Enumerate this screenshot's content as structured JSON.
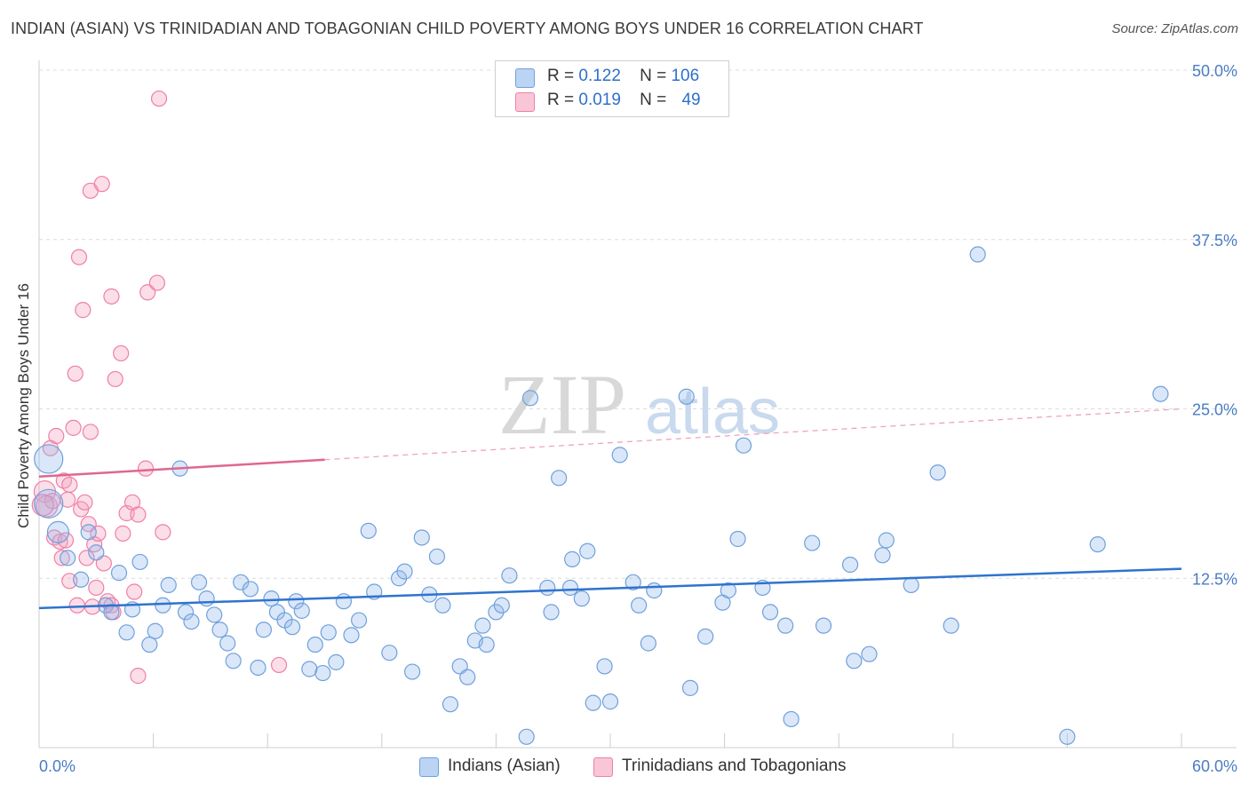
{
  "title": "INDIAN (ASIAN) VS TRINIDADIAN AND TOBAGONIAN CHILD POVERTY AMONG BOYS UNDER 16 CORRELATION CHART",
  "source": "Source: ZipAtlas.com",
  "watermark": {
    "zip": "ZIP",
    "atlas": "atlas"
  },
  "legend": {
    "r_label": "R =",
    "n_label": "N =",
    "series": [
      {
        "r": "0.122",
        "n": "106"
      },
      {
        "r": "0.019",
        "n": "49"
      }
    ]
  },
  "colors": {
    "blue": "#6fa0dc",
    "blue_line": "#2f73cf",
    "pink": "#f07fa6",
    "pink_line": "#e06690"
  },
  "chart_data": {
    "type": "scatter",
    "title": "INDIAN (ASIAN) VS TRINIDADIAN AND TOBAGONIAN CHILD POVERTY AMONG BOYS UNDER 16 CORRELATION CHART",
    "xlabel": "",
    "ylabel": "Child Poverty Among Boys Under 16",
    "xlim": [
      0,
      60
    ],
    "ylim": [
      0,
      50
    ],
    "x_tick_labels": [
      "0.0%",
      "60.0%"
    ],
    "y_ticks": [
      12.5,
      25.0,
      37.5,
      50.0
    ],
    "y_tick_labels": [
      "12.5%",
      "25.0%",
      "37.5%",
      "50.0%"
    ],
    "grid": true,
    "legend_position": "top-center",
    "series": [
      {
        "name": "Indians (Asian)",
        "color": "#6fa0dc",
        "trend": {
          "x": [
            0,
            60
          ],
          "y": [
            10.3,
            13.2
          ],
          "dashed_from": null
        },
        "points": [
          {
            "x": 0.5,
            "y": 21.3,
            "s": 3
          },
          {
            "x": 0.5,
            "y": 18.0,
            "s": 3
          },
          {
            "x": 1.0,
            "y": 15.9,
            "s": 2
          },
          {
            "x": 1.5,
            "y": 14.0
          },
          {
            "x": 2.2,
            "y": 12.4
          },
          {
            "x": 2.6,
            "y": 15.9
          },
          {
            "x": 3.0,
            "y": 14.4
          },
          {
            "x": 3.5,
            "y": 10.5
          },
          {
            "x": 3.8,
            "y": 10.0
          },
          {
            "x": 4.2,
            "y": 12.9
          },
          {
            "x": 4.6,
            "y": 8.5
          },
          {
            "x": 4.9,
            "y": 10.2
          },
          {
            "x": 5.3,
            "y": 13.7
          },
          {
            "x": 5.8,
            "y": 7.6
          },
          {
            "x": 6.1,
            "y": 8.6
          },
          {
            "x": 6.5,
            "y": 10.5
          },
          {
            "x": 6.8,
            "y": 12.0
          },
          {
            "x": 7.4,
            "y": 20.6
          },
          {
            "x": 7.7,
            "y": 10.0
          },
          {
            "x": 8.0,
            "y": 9.3
          },
          {
            "x": 8.4,
            "y": 12.2
          },
          {
            "x": 8.8,
            "y": 11.0
          },
          {
            "x": 9.2,
            "y": 9.8
          },
          {
            "x": 9.5,
            "y": 8.7
          },
          {
            "x": 9.9,
            "y": 7.7
          },
          {
            "x": 10.2,
            "y": 6.4
          },
          {
            "x": 10.6,
            "y": 12.2
          },
          {
            "x": 11.1,
            "y": 11.7
          },
          {
            "x": 11.5,
            "y": 5.9
          },
          {
            "x": 11.8,
            "y": 8.7
          },
          {
            "x": 12.2,
            "y": 11.0
          },
          {
            "x": 12.5,
            "y": 10.0
          },
          {
            "x": 12.9,
            "y": 9.4
          },
          {
            "x": 13.3,
            "y": 8.9
          },
          {
            "x": 13.5,
            "y": 10.8
          },
          {
            "x": 13.8,
            "y": 10.1
          },
          {
            "x": 14.2,
            "y": 5.8
          },
          {
            "x": 14.5,
            "y": 7.6
          },
          {
            "x": 14.9,
            "y": 5.5
          },
          {
            "x": 15.2,
            "y": 8.5
          },
          {
            "x": 15.6,
            "y": 6.3
          },
          {
            "x": 16.0,
            "y": 10.8
          },
          {
            "x": 16.4,
            "y": 8.3
          },
          {
            "x": 16.8,
            "y": 9.4
          },
          {
            "x": 17.3,
            "y": 16.0
          },
          {
            "x": 17.6,
            "y": 11.5
          },
          {
            "x": 18.4,
            "y": 7.0
          },
          {
            "x": 18.9,
            "y": 12.5
          },
          {
            "x": 19.2,
            "y": 13.0
          },
          {
            "x": 19.6,
            "y": 5.6
          },
          {
            "x": 20.1,
            "y": 15.5
          },
          {
            "x": 20.5,
            "y": 11.3
          },
          {
            "x": 20.9,
            "y": 14.1
          },
          {
            "x": 21.2,
            "y": 10.5
          },
          {
            "x": 21.6,
            "y": 3.2
          },
          {
            "x": 22.1,
            "y": 6.0
          },
          {
            "x": 22.5,
            "y": 5.2
          },
          {
            "x": 22.9,
            "y": 7.9
          },
          {
            "x": 23.3,
            "y": 9.0
          },
          {
            "x": 23.5,
            "y": 7.6
          },
          {
            "x": 24.0,
            "y": 10.0
          },
          {
            "x": 24.3,
            "y": 10.5
          },
          {
            "x": 24.7,
            "y": 12.7
          },
          {
            "x": 25.6,
            "y": 0.8
          },
          {
            "x": 25.8,
            "y": 25.8
          },
          {
            "x": 26.7,
            "y": 11.8
          },
          {
            "x": 26.9,
            "y": 10.0
          },
          {
            "x": 27.3,
            "y": 19.9
          },
          {
            "x": 27.9,
            "y": 11.8
          },
          {
            "x": 28.0,
            "y": 13.9
          },
          {
            "x": 28.5,
            "y": 11.0
          },
          {
            "x": 28.8,
            "y": 14.5
          },
          {
            "x": 29.1,
            "y": 3.3
          },
          {
            "x": 29.7,
            "y": 6.0
          },
          {
            "x": 30.0,
            "y": 3.4
          },
          {
            "x": 30.5,
            "y": 21.6
          },
          {
            "x": 31.2,
            "y": 12.2
          },
          {
            "x": 31.5,
            "y": 10.5
          },
          {
            "x": 32.0,
            "y": 7.7
          },
          {
            "x": 32.3,
            "y": 11.6
          },
          {
            "x": 34.0,
            "y": 25.9
          },
          {
            "x": 34.2,
            "y": 4.4
          },
          {
            "x": 35.0,
            "y": 8.2
          },
          {
            "x": 35.9,
            "y": 10.7
          },
          {
            "x": 36.2,
            "y": 11.6
          },
          {
            "x": 36.7,
            "y": 15.4
          },
          {
            "x": 37.0,
            "y": 22.3
          },
          {
            "x": 38.0,
            "y": 11.8
          },
          {
            "x": 38.4,
            "y": 10.0
          },
          {
            "x": 39.2,
            "y": 9.0
          },
          {
            "x": 39.5,
            "y": 2.1
          },
          {
            "x": 40.6,
            "y": 15.1
          },
          {
            "x": 41.2,
            "y": 9.0
          },
          {
            "x": 42.6,
            "y": 13.5
          },
          {
            "x": 42.8,
            "y": 6.4
          },
          {
            "x": 43.6,
            "y": 6.9
          },
          {
            "x": 44.3,
            "y": 14.2
          },
          {
            "x": 44.5,
            "y": 15.3
          },
          {
            "x": 45.8,
            "y": 12.0
          },
          {
            "x": 47.2,
            "y": 20.3
          },
          {
            "x": 47.9,
            "y": 9.0
          },
          {
            "x": 49.3,
            "y": 36.4
          },
          {
            "x": 54.0,
            "y": 0.8
          },
          {
            "x": 55.6,
            "y": 15.0
          },
          {
            "x": 58.9,
            "y": 26.1
          }
        ]
      },
      {
        "name": "Trinidadians and Tobagonians",
        "color": "#f07fa6",
        "trend": {
          "x": [
            0,
            60
          ],
          "y": [
            20.0,
            25.0
          ],
          "solid_to_x": 15
        },
        "points": [
          {
            "x": 0.3,
            "y": 18.9,
            "s": 2
          },
          {
            "x": 0.4,
            "y": 17.8,
            "s": 2
          },
          {
            "x": 0.6,
            "y": 22.1
          },
          {
            "x": 0.7,
            "y": 18.2
          },
          {
            "x": 0.8,
            "y": 15.5
          },
          {
            "x": 0.9,
            "y": 23.0
          },
          {
            "x": 1.1,
            "y": 15.2
          },
          {
            "x": 1.2,
            "y": 14.0
          },
          {
            "x": 1.3,
            "y": 19.7
          },
          {
            "x": 1.4,
            "y": 15.3
          },
          {
            "x": 1.5,
            "y": 18.3
          },
          {
            "x": 1.6,
            "y": 19.4
          },
          {
            "x": 1.8,
            "y": 23.6
          },
          {
            "x": 1.6,
            "y": 12.3
          },
          {
            "x": 1.9,
            "y": 27.6
          },
          {
            "x": 2.0,
            "y": 10.5
          },
          {
            "x": 2.1,
            "y": 36.2
          },
          {
            "x": 2.2,
            "y": 17.6
          },
          {
            "x": 2.3,
            "y": 32.3
          },
          {
            "x": 2.4,
            "y": 18.1
          },
          {
            "x": 2.5,
            "y": 14.0
          },
          {
            "x": 2.6,
            "y": 16.5
          },
          {
            "x": 2.7,
            "y": 41.1
          },
          {
            "x": 2.7,
            "y": 23.3
          },
          {
            "x": 2.8,
            "y": 10.4
          },
          {
            "x": 2.9,
            "y": 15.0
          },
          {
            "x": 3.0,
            "y": 11.8
          },
          {
            "x": 3.1,
            "y": 15.8
          },
          {
            "x": 3.3,
            "y": 41.6
          },
          {
            "x": 3.4,
            "y": 13.6
          },
          {
            "x": 3.6,
            "y": 10.8
          },
          {
            "x": 3.8,
            "y": 10.5
          },
          {
            "x": 3.8,
            "y": 33.3
          },
          {
            "x": 3.9,
            "y": 10.0
          },
          {
            "x": 4.0,
            "y": 27.2
          },
          {
            "x": 4.3,
            "y": 29.1
          },
          {
            "x": 4.4,
            "y": 15.8
          },
          {
            "x": 4.6,
            "y": 17.3
          },
          {
            "x": 4.9,
            "y": 18.1
          },
          {
            "x": 5.0,
            "y": 11.5
          },
          {
            "x": 5.2,
            "y": 5.3
          },
          {
            "x": 5.2,
            "y": 17.2
          },
          {
            "x": 5.6,
            "y": 20.6
          },
          {
            "x": 5.7,
            "y": 33.6
          },
          {
            "x": 6.2,
            "y": 34.3
          },
          {
            "x": 6.3,
            "y": 47.9
          },
          {
            "x": 6.5,
            "y": 15.9
          },
          {
            "x": 12.6,
            "y": 6.1
          },
          {
            "x": 0.2,
            "y": 17.9,
            "s": 2
          }
        ]
      }
    ]
  },
  "bottom_legend": [
    "Indians (Asian)",
    "Trinidadians and Tobagonians"
  ]
}
